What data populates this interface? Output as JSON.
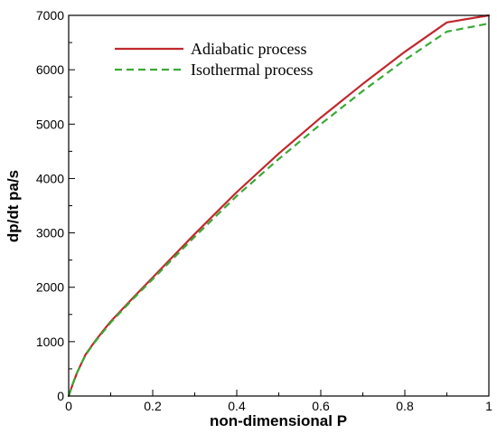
{
  "chart_data": {
    "type": "line",
    "title": "",
    "xlabel": "non-dimensional P",
    "ylabel": "dp/dt  pa/s",
    "xlim": [
      0,
      1
    ],
    "ylim": [
      0,
      7000
    ],
    "xticks": [
      0,
      0.2,
      0.4,
      0.6,
      0.8,
      1
    ],
    "xtick_labels": [
      "0",
      "0.2",
      "0.4",
      "0.6",
      "0.8",
      "1"
    ],
    "yticks": [
      0,
      1000,
      2000,
      3000,
      4000,
      5000,
      6000,
      7000
    ],
    "ytick_labels": [
      "0",
      "1000",
      "2000",
      "3000",
      "4000",
      "5000",
      "6000",
      "7000"
    ],
    "grid": false,
    "legend_position": "top-left",
    "series": [
      {
        "name": "Adiabatic process",
        "color": "#c0282d",
        "dash": "solid",
        "x": [
          0,
          0.01,
          0.02,
          0.04,
          0.06,
          0.08,
          0.1,
          0.15,
          0.2,
          0.3,
          0.4,
          0.5,
          0.6,
          0.7,
          0.8,
          0.9,
          1.0
        ],
        "y": [
          0,
          230,
          430,
          760,
          980,
          1180,
          1370,
          1780,
          2180,
          2980,
          3750,
          4460,
          5120,
          5740,
          6330,
          6870,
          7000
        ]
      },
      {
        "name": "Isothermal process",
        "color": "#3aaa35",
        "dash": "dashed",
        "x": [
          0,
          0.01,
          0.02,
          0.04,
          0.06,
          0.08,
          0.1,
          0.15,
          0.2,
          0.3,
          0.4,
          0.5,
          0.6,
          0.7,
          0.8,
          0.9,
          1.0
        ],
        "y": [
          0,
          230,
          430,
          750,
          970,
          1160,
          1350,
          1760,
          2150,
          2930,
          3680,
          4360,
          5000,
          5610,
          6180,
          6700,
          6850
        ]
      }
    ]
  }
}
